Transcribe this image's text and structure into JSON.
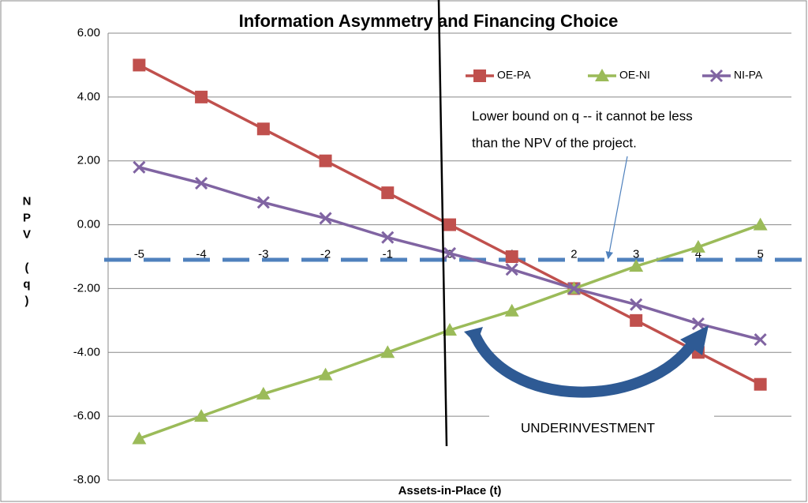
{
  "chart_data": {
    "type": "line",
    "title": "Information Asymmetry and Financing Choice",
    "x_label": "Assets-in-Place (t)",
    "y_label": "NPV (q)",
    "categories": [
      "-5",
      "-4",
      "-3",
      "-2",
      "-1",
      "0",
      "1",
      "2",
      "3",
      "4",
      "5"
    ],
    "series": [
      {
        "name": "OE-PA",
        "color": "#c0504d",
        "marker": "square",
        "values": [
          5,
          4,
          3,
          2,
          1,
          0,
          -1,
          -2,
          -3,
          -4,
          -5
        ]
      },
      {
        "name": "OE-NI",
        "color": "#9bbb59",
        "marker": "triangle",
        "values": [
          -6.7,
          -6.0,
          -5.3,
          -4.7,
          -4.0,
          -3.3,
          -2.7,
          -2.0,
          -1.3,
          -0.7,
          0
        ]
      },
      {
        "name": "NI-PA",
        "color": "#8064a2",
        "marker": "x",
        "values": [
          1.8,
          1.3,
          0.7,
          0.2,
          -0.4,
          -0.9,
          -1.4,
          -2.0,
          -2.5,
          -3.1,
          -3.6
        ]
      }
    ],
    "ylim": [
      -8,
      6
    ],
    "yticks": [
      {
        "value": -8,
        "label": "-8.00"
      },
      {
        "value": -6,
        "label": "-6.00"
      },
      {
        "value": -4,
        "label": "-4.00"
      },
      {
        "value": -2,
        "label": "-2.00"
      },
      {
        "value": 0,
        "label": "0.00"
      },
      {
        "value": 2,
        "label": "2.00"
      },
      {
        "value": 4,
        "label": "4.00"
      },
      {
        "value": 6,
        "label": "6.00"
      }
    ],
    "grid": true,
    "legend": "top-right",
    "reference_line": {
      "value": -1.1,
      "color": "#4f81bd"
    },
    "annotations": [
      "Lower bound on q -- it cannot be less",
      "than the NPV of the project.",
      "UNDERINVESTMENT"
    ]
  }
}
